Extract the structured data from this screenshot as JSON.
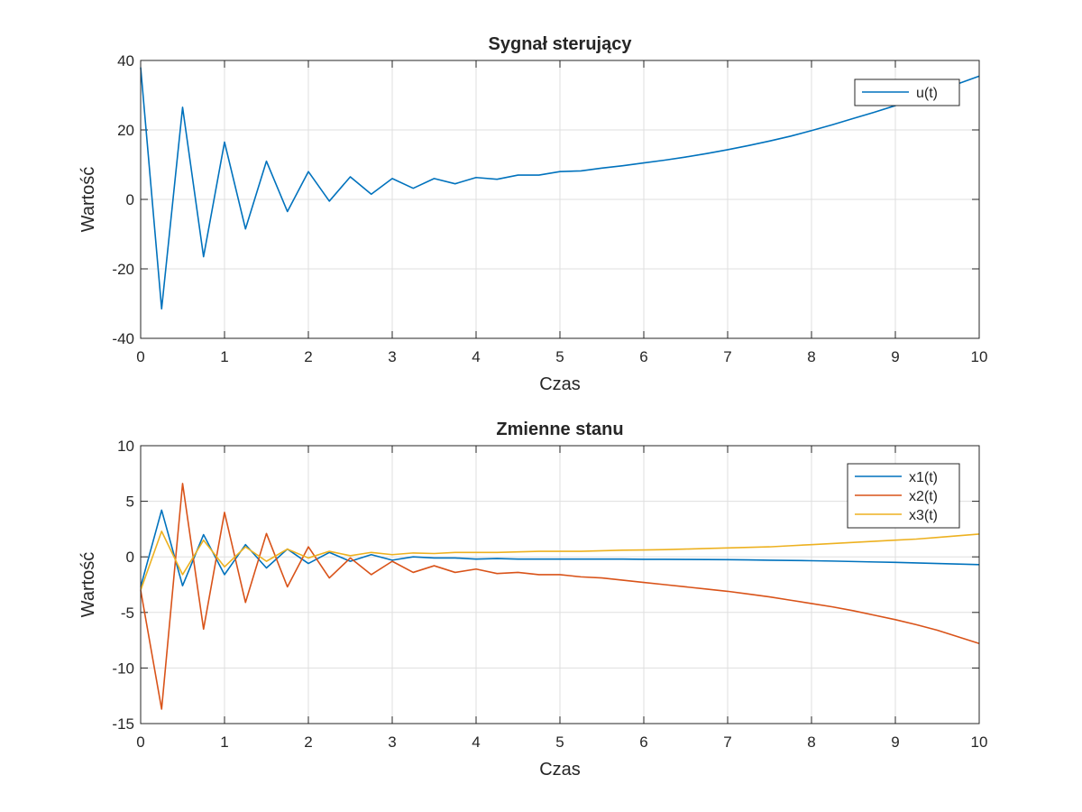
{
  "chart_data": [
    {
      "type": "line",
      "title": "Sygnał sterujący",
      "xlabel": "Czas",
      "ylabel": "Wartość",
      "xlim": [
        0,
        10
      ],
      "ylim": [
        -40,
        40
      ],
      "xticks": [
        "0",
        "1",
        "2",
        "3",
        "4",
        "5",
        "6",
        "7",
        "8",
        "9",
        "10"
      ],
      "yticks": [
        "40",
        "20",
        "0",
        "-20",
        "-40"
      ],
      "grid": true,
      "legend_position": "top-right",
      "x": [
        0,
        0.25,
        0.5,
        0.75,
        1,
        1.25,
        1.5,
        1.75,
        2,
        2.25,
        2.5,
        2.75,
        3,
        3.25,
        3.5,
        3.75,
        4,
        4.25,
        4.5,
        4.75,
        5,
        5.25,
        5.5,
        5.75,
        6,
        6.25,
        6.5,
        6.75,
        7,
        7.25,
        7.5,
        7.75,
        8,
        8.25,
        8.5,
        8.75,
        9,
        9.25,
        9.5,
        9.75,
        10
      ],
      "series": [
        {
          "name": "u(t)",
          "color": "#0072BD",
          "values": [
            38,
            -31.5,
            26.5,
            -16.5,
            16.5,
            -8.5,
            11,
            -3.5,
            8,
            -0.5,
            6.5,
            1.5,
            6,
            3.2,
            6,
            4.5,
            6.3,
            5.8,
            7,
            7,
            8,
            8.2,
            9,
            9.7,
            10.5,
            11.3,
            12.2,
            13.2,
            14.3,
            15.5,
            16.8,
            18.2,
            19.8,
            21.5,
            23.3,
            25.1,
            27,
            29.5,
            31.5,
            33.3,
            35.5
          ]
        }
      ]
    },
    {
      "type": "line",
      "title": "Zmienne stanu",
      "xlabel": "Czas",
      "ylabel": "Wartość",
      "xlim": [
        0,
        10
      ],
      "ylim": [
        -15,
        10
      ],
      "xticks": [
        "0",
        "1",
        "2",
        "3",
        "4",
        "5",
        "6",
        "7",
        "8",
        "9",
        "10"
      ],
      "yticks": [
        "10",
        "5",
        "0",
        "-5",
        "-10",
        "-15"
      ],
      "grid": true,
      "legend_position": "top-right",
      "x": [
        0,
        0.25,
        0.5,
        0.75,
        1,
        1.25,
        1.5,
        1.75,
        2,
        2.25,
        2.5,
        2.75,
        3,
        3.25,
        3.5,
        3.75,
        4,
        4.25,
        4.5,
        4.75,
        5,
        5.25,
        5.5,
        5.75,
        6,
        6.25,
        6.5,
        6.75,
        7,
        7.25,
        7.5,
        7.75,
        8,
        8.25,
        8.5,
        8.75,
        9,
        9.25,
        9.5,
        9.75,
        10
      ],
      "series": [
        {
          "name": "x1(t)",
          "color": "#0072BD",
          "values": [
            -2.7,
            4.2,
            -2.6,
            2.0,
            -1.6,
            1.1,
            -1.0,
            0.7,
            -0.6,
            0.4,
            -0.4,
            0.2,
            -0.3,
            0,
            -0.1,
            -0.1,
            -0.2,
            -0.15,
            -0.2,
            -0.2,
            -0.2,
            -0.2,
            -0.2,
            -0.2,
            -0.22,
            -0.22,
            -0.23,
            -0.24,
            -0.25,
            -0.27,
            -0.3,
            -0.32,
            -0.35,
            -0.38,
            -0.42,
            -0.46,
            -0.5,
            -0.55,
            -0.6,
            -0.65,
            -0.7
          ]
        },
        {
          "name": "x2(t)",
          "color": "#D95319",
          "values": [
            -3,
            -13.7,
            6.6,
            -6.5,
            4,
            -4.1,
            2.1,
            -2.7,
            0.9,
            -1.9,
            -0.1,
            -1.6,
            -0.4,
            -1.4,
            -0.8,
            -1.4,
            -1.1,
            -1.5,
            -1.4,
            -1.6,
            -1.6,
            -1.8,
            -1.9,
            -2.1,
            -2.3,
            -2.5,
            -2.7,
            -2.9,
            -3.1,
            -3.35,
            -3.6,
            -3.9,
            -4.2,
            -4.5,
            -4.85,
            -5.25,
            -5.65,
            -6.1,
            -6.6,
            -7.2,
            -7.8
          ]
        },
        {
          "name": "x3(t)",
          "color": "#EDB120",
          "values": [
            -3,
            2.3,
            -1.6,
            1.5,
            -0.9,
            0.9,
            -0.4,
            0.7,
            -0.1,
            0.5,
            0.1,
            0.4,
            0.2,
            0.35,
            0.3,
            0.4,
            0.4,
            0.4,
            0.45,
            0.5,
            0.5,
            0.5,
            0.55,
            0.6,
            0.62,
            0.65,
            0.7,
            0.75,
            0.8,
            0.85,
            0.9,
            1.0,
            1.1,
            1.2,
            1.3,
            1.4,
            1.5,
            1.6,
            1.75,
            1.9,
            2.05
          ]
        }
      ]
    }
  ]
}
